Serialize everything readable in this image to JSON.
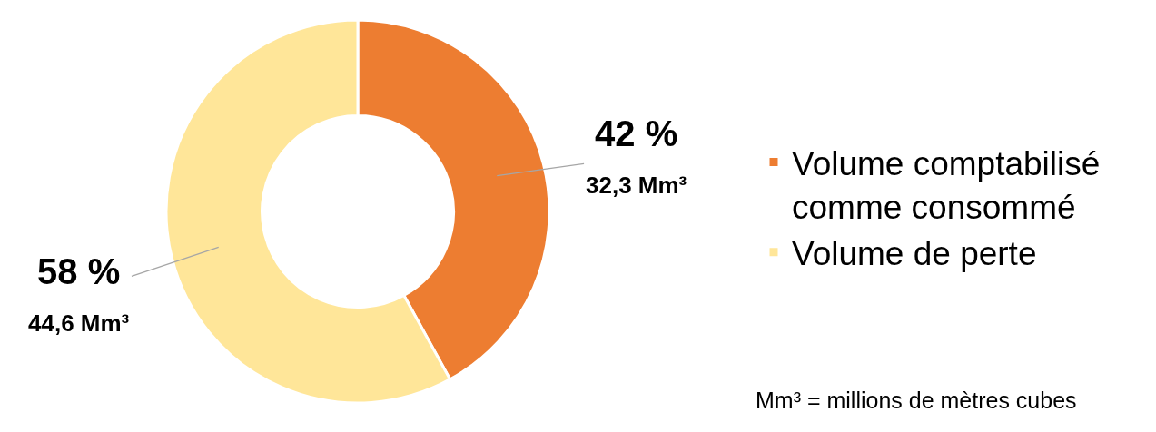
{
  "chart_data": {
    "type": "donut",
    "categories": [
      "Volume comptabilisé comme consommé",
      "Volume de perte"
    ],
    "values": [
      32.3,
      44.6
    ],
    "colors": [
      "#ed7d31",
      "#ffe699"
    ],
    "value_labels": [
      "42 %\n32,3 Mm³",
      "58 %\n44,6 Mm³"
    ],
    "legend": "right",
    "annotations": [
      "Mm³ = millions de mètres cubes"
    ]
  }
}
